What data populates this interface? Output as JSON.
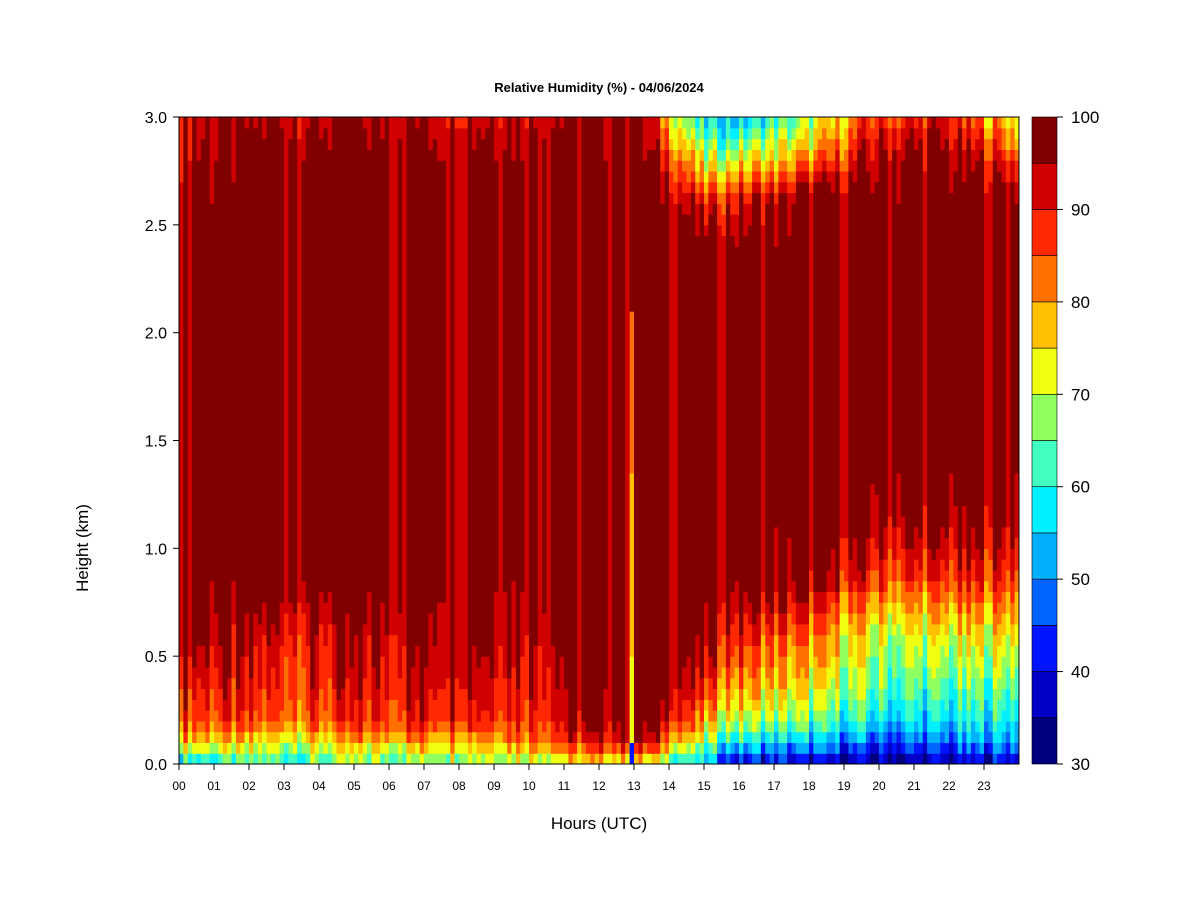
{
  "chart_data": {
    "type": "heatmap",
    "title": "Relative Humidity (%) - 04/06/2024",
    "xlabel": "Hours (UTC)",
    "ylabel": "Height (km)",
    "xlim": [
      0,
      24
    ],
    "ylim": [
      0.0,
      3.0
    ],
    "x_ticks": [
      "00",
      "01",
      "02",
      "03",
      "04",
      "05",
      "06",
      "07",
      "08",
      "09",
      "10",
      "11",
      "12",
      "13",
      "14",
      "15",
      "16",
      "17",
      "18",
      "19",
      "20",
      "21",
      "22",
      "23"
    ],
    "y_ticks": [
      "0.0",
      "0.5",
      "1.0",
      "1.5",
      "2.0",
      "2.5",
      "3.0"
    ],
    "colorbar": {
      "range": [
        30,
        100
      ],
      "levels": [
        30,
        35,
        40,
        45,
        50,
        55,
        60,
        65,
        70,
        75,
        80,
        85,
        90,
        95,
        100
      ],
      "labels": [
        "30",
        "40",
        "50",
        "60",
        "70",
        "80",
        "90",
        "100"
      ],
      "colors": [
        "#00007f",
        "#0000c8",
        "#0014ff",
        "#0064ff",
        "#00b0ff",
        "#00f0ff",
        "#40ffc0",
        "#90ff60",
        "#f0ff10",
        "#ffc000",
        "#ff7000",
        "#ff2800",
        "#d00000",
        "#800000"
      ]
    },
    "profiles": [
      {
        "hour": 0,
        "rh": [
          55,
          80,
          88,
          92,
          100,
          100,
          100,
          100,
          100,
          100,
          100,
          100,
          95,
          94
        ]
      },
      {
        "hour": 2,
        "rh": [
          60,
          72,
          84,
          88,
          92,
          100,
          100,
          100,
          100,
          100,
          100,
          100,
          100,
          95
        ]
      },
      {
        "hour": 4,
        "rh": [
          62,
          74,
          85,
          88,
          92,
          100,
          100,
          100,
          100,
          100,
          100,
          100,
          100,
          95
        ]
      },
      {
        "hour": 6,
        "rh": [
          65,
          78,
          88,
          91,
          95,
          100,
          100,
          100,
          100,
          100,
          100,
          100,
          100,
          95
        ]
      },
      {
        "hour": 8,
        "rh": [
          68,
          80,
          92,
          96,
          100,
          100,
          100,
          100,
          100,
          100,
          100,
          100,
          100,
          95
        ]
      },
      {
        "hour": 10,
        "rh": [
          70,
          84,
          90,
          92,
          96,
          100,
          100,
          100,
          100,
          100,
          100,
          100,
          100,
          95
        ]
      },
      {
        "hour": 12,
        "rh": [
          72,
          90,
          96,
          100,
          100,
          100,
          100,
          100,
          100,
          100,
          100,
          100,
          100,
          97
        ]
      },
      {
        "hour": 13,
        "rh": [
          70,
          96,
          100,
          100,
          100,
          100,
          100,
          100,
          100,
          100,
          100,
          100,
          100,
          100
        ]
      },
      {
        "hour": 14,
        "rh": [
          65,
          82,
          96,
          100,
          100,
          100,
          100,
          100,
          100,
          100,
          100,
          100,
          90,
          78
        ]
      },
      {
        "hour": 15,
        "rh": [
          50,
          66,
          76,
          86,
          96,
          100,
          100,
          100,
          100,
          100,
          100,
          88,
          70,
          55
        ]
      },
      {
        "hour": 16,
        "rh": [
          38,
          58,
          70,
          80,
          90,
          100,
          100,
          100,
          100,
          100,
          100,
          92,
          72,
          55
        ]
      },
      {
        "hour": 18,
        "rh": [
          35,
          52,
          64,
          72,
          82,
          95,
          100,
          100,
          100,
          100,
          100,
          100,
          80,
          66
        ]
      },
      {
        "hour": 20,
        "rh": [
          32,
          45,
          56,
          64,
          70,
          86,
          95,
          100,
          100,
          100,
          100,
          100,
          96,
          88
        ]
      },
      {
        "hour": 22,
        "rh": [
          33,
          46,
          55,
          62,
          72,
          86,
          95,
          100,
          100,
          100,
          100,
          100,
          96,
          90
        ]
      },
      {
        "hour": 24,
        "rh": [
          40,
          54,
          60,
          66,
          76,
          88,
          96,
          100,
          100,
          100,
          100,
          100,
          88,
          72
        ]
      }
    ],
    "profile_heights_km": [
      0.0,
      0.1,
      0.2,
      0.35,
      0.6,
      0.85,
      1.1,
      1.4,
      1.8,
      2.2,
      2.4,
      2.6,
      2.8,
      3.0
    ]
  }
}
